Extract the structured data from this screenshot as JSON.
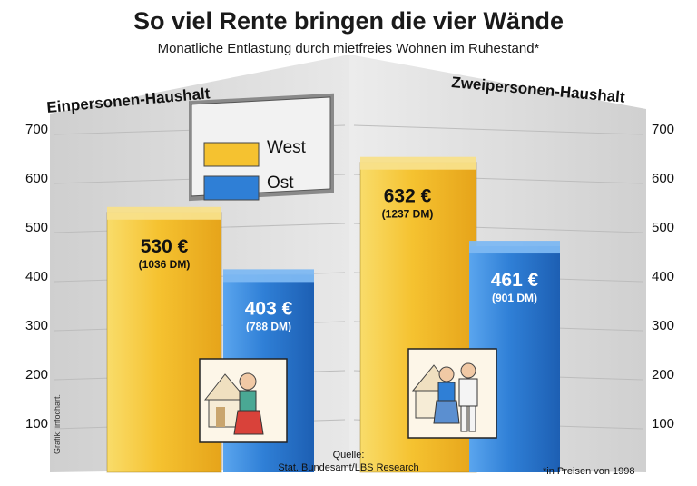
{
  "title": "So viel Rente bringen die vier Wände",
  "subtitle": "Monatliche Entlastung durch mietfreies Wohnen im Ruhestand*",
  "credit": "Grafik: infochart.",
  "source_line1": "Quelle:",
  "source_line2": "Stat. Bundesamt/LBS Research",
  "footnote": "*in Preisen von 1998",
  "colors": {
    "west": "#f5c230",
    "ost": "#2f7fd6",
    "background": "#e3e3e3"
  },
  "chart_data": {
    "type": "bar",
    "title": "So viel Rente bringen die vier Wände",
    "subtitle": "Monatliche Entlastung durch mietfreies Wohnen im Ruhestand*",
    "categories": [
      "Einpersonen-Haushalt",
      "Zweipersonen-Haushalt"
    ],
    "series": [
      {
        "name": "West",
        "values": [
          530,
          632
        ],
        "labels": [
          "530 €",
          "632 €"
        ],
        "sublabels": [
          "(1036 DM)",
          "(1237 DM)"
        ]
      },
      {
        "name": "Ost",
        "values": [
          403,
          461
        ],
        "labels": [
          "403 €",
          "461 €"
        ],
        "sublabels": [
          "(788 DM)",
          "(901 DM)"
        ]
      }
    ],
    "yticks": [
      100,
      200,
      300,
      400,
      500,
      600,
      700
    ],
    "ylim": [
      0,
      700
    ],
    "legend": "top-center",
    "grid": true
  }
}
